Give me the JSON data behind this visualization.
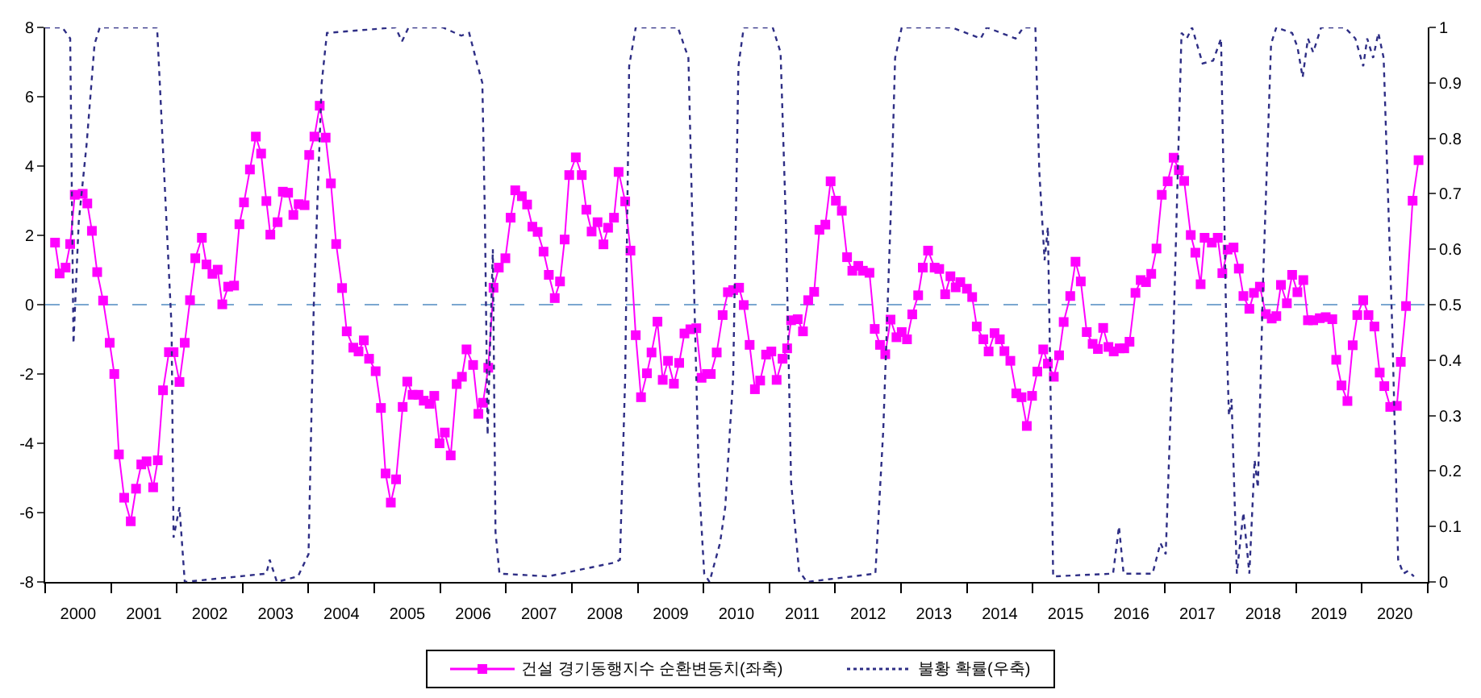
{
  "chart_data": {
    "type": "line",
    "xlim": [
      2000,
      2021
    ],
    "xticks": [
      {
        "value": 2000,
        "label": null
      },
      {
        "value": 2000.5,
        "label": "2000"
      },
      {
        "value": 2001,
        "label": null
      },
      {
        "value": 2001.5,
        "label": "2001"
      },
      {
        "value": 2002,
        "label": null
      },
      {
        "value": 2002.5,
        "label": "2002"
      },
      {
        "value": 2003,
        "label": null
      },
      {
        "value": 2003.5,
        "label": "2003"
      },
      {
        "value": 2004,
        "label": null
      },
      {
        "value": 2004.5,
        "label": "2004"
      },
      {
        "value": 2005,
        "label": null
      },
      {
        "value": 2005.5,
        "label": "2005"
      },
      {
        "value": 2006,
        "label": null
      },
      {
        "value": 2006.5,
        "label": "2006"
      },
      {
        "value": 2007,
        "label": null
      },
      {
        "value": 2007.5,
        "label": "2007"
      },
      {
        "value": 2008,
        "label": null
      },
      {
        "value": 2008.5,
        "label": "2008"
      },
      {
        "value": 2009,
        "label": null
      },
      {
        "value": 2009.5,
        "label": "2009"
      },
      {
        "value": 2010,
        "label": null
      },
      {
        "value": 2010.5,
        "label": "2010"
      },
      {
        "value": 2011,
        "label": null
      },
      {
        "value": 2011.5,
        "label": "2011"
      },
      {
        "value": 2012,
        "label": null
      },
      {
        "value": 2012.5,
        "label": "2012"
      },
      {
        "value": 2013,
        "label": null
      },
      {
        "value": 2013.5,
        "label": "2013"
      },
      {
        "value": 2014,
        "label": null
      },
      {
        "value": 2014.5,
        "label": "2014"
      },
      {
        "value": 2015,
        "label": null
      },
      {
        "value": 2015.5,
        "label": "2015"
      },
      {
        "value": 2016,
        "label": null
      },
      {
        "value": 2016.5,
        "label": "2016"
      },
      {
        "value": 2017,
        "label": null
      },
      {
        "value": 2017.5,
        "label": "2017"
      },
      {
        "value": 2018,
        "label": null
      },
      {
        "value": 2018.5,
        "label": "2018"
      },
      {
        "value": 2019,
        "label": null
      },
      {
        "value": 2019.5,
        "label": "2019"
      },
      {
        "value": 2020,
        "label": null
      },
      {
        "value": 2020.5,
        "label": "2020"
      },
      {
        "value": 2021,
        "label": null
      }
    ],
    "ylim": [
      -8,
      8
    ],
    "yticks": [
      -8,
      -6,
      -4,
      -2,
      0,
      2,
      4,
      6,
      8
    ],
    "y2lim": [
      0,
      1
    ],
    "y2ticks": [
      0,
      0.1,
      0.2,
      0.3,
      0.4,
      0.5,
      0.6,
      0.7,
      0.8,
      0.9,
      1
    ],
    "grid": false,
    "legend": "bottom",
    "ref_lines": [
      {
        "axis": "y",
        "value": 0,
        "label": null,
        "color": "#7ba7d0",
        "line_style": "dashed"
      }
    ],
    "series": [
      {
        "name": "건설 경기동행지수 순환변동치(좌축)",
        "color": "#ff00ff",
        "marker": "square",
        "line_style": "solid",
        "x": [
          2000.15,
          2000.22,
          2000.31,
          2000.38,
          2000.45,
          2000.57,
          2000.64,
          2000.71,
          2000.79,
          2000.88,
          2000.98,
          2001.05,
          2001.12,
          2001.2,
          2001.3,
          2001.38,
          2001.46,
          2001.54,
          2001.64,
          2001.71,
          2001.79,
          2001.88,
          2001.95,
          2002.04,
          2002.12,
          2002.2,
          2002.28,
          2002.38,
          2002.45,
          2002.54,
          2002.62,
          2002.69,
          2002.78,
          2002.87,
          2002.95,
          2003.02,
          2003.11,
          2003.2,
          2003.28,
          2003.36,
          2003.42,
          2003.53,
          2003.61,
          2003.69,
          2003.77,
          2003.85,
          2003.94,
          2004.01,
          2004.09,
          2004.17,
          2004.26,
          2004.34,
          2004.42,
          2004.51,
          2004.58,
          2004.68,
          2004.76,
          2004.84,
          2004.92,
          2005.02,
          2005.1,
          2005.17,
          2005.25,
          2005.33,
          2005.43,
          2005.5,
          2005.58,
          2005.67,
          2005.75,
          2005.84,
          2005.91,
          2005.99,
          2006.07,
          2006.16,
          2006.25,
          2006.33,
          2006.4,
          2006.5,
          2006.58,
          2006.65,
          2006.73,
          2006.81,
          2006.89,
          2006.99,
          2007.07,
          2007.14,
          2007.24,
          2007.32,
          2007.4,
          2007.48,
          2007.57,
          2007.65,
          2007.74,
          2007.82,
          2007.89,
          2007.96,
          2008.06,
          2008.15,
          2008.22,
          2008.3,
          2008.39,
          2008.48,
          2008.55,
          2008.64,
          2008.71,
          2008.81,
          2008.89,
          2008.97,
          2009.05,
          2009.14,
          2009.21,
          2009.3,
          2009.38,
          2009.46,
          2009.55,
          2009.63,
          2009.71,
          2009.8,
          2009.89,
          2009.97,
          2010.05,
          2010.11,
          2010.2,
          2010.29,
          2010.37,
          2010.45,
          2010.54,
          2010.61,
          2010.7,
          2010.78,
          2010.86,
          2010.95,
          2011.03,
          2011.11,
          2011.2,
          2011.27,
          2011.33,
          2011.43,
          2011.51,
          2011.59,
          2011.68,
          2011.76,
          2011.85,
          2011.93,
          2012.01,
          2012.1,
          2012.18,
          2012.26,
          2012.35,
          2012.42,
          2012.52,
          2012.6,
          2012.68,
          2012.76,
          2012.84,
          2012.93,
          2013.01,
          2013.09,
          2013.17,
          2013.26,
          2013.33,
          2013.41,
          2013.51,
          2013.58,
          2013.67,
          2013.75,
          2013.83,
          2013.9,
          2014.0,
          2014.08,
          2014.15,
          2014.25,
          2014.33,
          2014.42,
          2014.5,
          2014.57,
          2014.66,
          2014.75,
          2014.83,
          2014.91,
          2014.99,
          2015.07,
          2015.16,
          2015.23,
          2015.32,
          2015.4,
          2015.47,
          2015.57,
          2015.65,
          2015.73,
          2015.82,
          2015.91,
          2015.99,
          2016.07,
          2016.15,
          2016.23,
          2016.32,
          2016.39,
          2016.47,
          2016.56,
          2016.64,
          2016.72,
          2016.8,
          2016.88,
          2016.96,
          2017.05,
          2017.14,
          2017.22,
          2017.3,
          2017.4,
          2017.47,
          2017.55,
          2017.61,
          2017.72,
          2017.81,
          2017.88,
          2017.96,
          2018.05,
          2018.13,
          2018.2,
          2018.29,
          2018.36,
          2018.45,
          2018.54,
          2018.63,
          2018.7,
          2018.77,
          2018.86,
          2018.94,
          2019.02,
          2019.11,
          2019.18,
          2019.26,
          2019.36,
          2019.45,
          2019.55,
          2019.61,
          2019.69,
          2019.78,
          2019.86,
          2019.93,
          2020.02,
          2020.1,
          2020.19,
          2020.27,
          2020.34,
          2020.43,
          2020.53,
          2020.59,
          2020.67,
          2020.77,
          2020.86
        ],
        "values": [
          1.79,
          0.9,
          1.07,
          1.75,
          3.17,
          3.2,
          2.92,
          2.13,
          0.94,
          0.12,
          -1.1,
          -2.0,
          -4.32,
          -5.57,
          -6.25,
          -5.31,
          -4.61,
          -4.52,
          -5.27,
          -4.49,
          -2.47,
          -1.37,
          -1.37,
          -2.23,
          -1.1,
          0.13,
          1.34,
          1.93,
          1.16,
          0.89,
          1.01,
          0.01,
          0.52,
          0.55,
          2.32,
          2.95,
          3.9,
          4.85,
          4.36,
          2.99,
          2.02,
          2.38,
          3.26,
          3.23,
          2.59,
          2.9,
          2.87,
          4.32,
          4.85,
          5.74,
          4.82,
          3.5,
          1.75,
          0.48,
          -0.77,
          -1.24,
          -1.35,
          -1.03,
          -1.56,
          -1.92,
          -2.98,
          -4.87,
          -5.71,
          -5.04,
          -2.95,
          -2.22,
          -2.6,
          -2.6,
          -2.77,
          -2.86,
          -2.63,
          -4.0,
          -3.69,
          -4.35,
          -2.29,
          -2.08,
          -1.29,
          -1.74,
          -3.15,
          -2.83,
          -1.82,
          0.49,
          1.07,
          1.34,
          2.51,
          3.3,
          3.13,
          2.89,
          2.25,
          2.1,
          1.53,
          0.86,
          0.19,
          0.67,
          1.88,
          3.74,
          4.25,
          3.74,
          2.74,
          2.11,
          2.38,
          1.74,
          2.22,
          2.51,
          3.83,
          2.98,
          1.56,
          -0.88,
          -2.67,
          -1.98,
          -1.38,
          -0.49,
          -2.17,
          -1.62,
          -2.28,
          -1.68,
          -0.83,
          -0.71,
          -0.68,
          -2.11,
          -2.0,
          -2.0,
          -1.38,
          -0.3,
          0.36,
          0.42,
          0.49,
          -0.01,
          -1.16,
          -2.44,
          -2.19,
          -1.44,
          -1.35,
          -2.17,
          -1.56,
          -1.26,
          -0.45,
          -0.42,
          -0.77,
          0.13,
          0.37,
          2.16,
          2.31,
          3.56,
          3.0,
          2.71,
          1.37,
          0.98,
          1.12,
          0.98,
          0.92,
          -0.7,
          -1.16,
          -1.43,
          -0.43,
          -0.94,
          -0.79,
          -1.0,
          -0.28,
          0.27,
          1.07,
          1.56,
          1.07,
          1.03,
          0.3,
          0.82,
          0.5,
          0.65,
          0.46,
          0.22,
          -0.63,
          -1.0,
          -1.35,
          -0.82,
          -1.0,
          -1.34,
          -1.62,
          -2.56,
          -2.67,
          -3.5,
          -2.63,
          -1.93,
          -1.29,
          -1.7,
          -2.08,
          -1.46,
          -0.5,
          0.25,
          1.24,
          0.67,
          -0.79,
          -1.13,
          -1.28,
          -0.67,
          -1.22,
          -1.35,
          -1.26,
          -1.26,
          -1.07,
          0.34,
          0.71,
          0.65,
          0.89,
          1.62,
          3.17,
          3.56,
          4.24,
          3.88,
          3.57,
          2.01,
          1.5,
          0.59,
          1.93,
          1.79,
          1.93,
          0.91,
          1.59,
          1.65,
          1.04,
          0.25,
          -0.12,
          0.34,
          0.52,
          -0.27,
          -0.4,
          -0.33,
          0.57,
          0.04,
          0.86,
          0.36,
          0.71,
          -0.45,
          -0.45,
          -0.39,
          -0.36,
          -0.42,
          -1.59,
          -2.33,
          -2.78,
          -1.17,
          -0.3,
          0.13,
          -0.3,
          -0.63,
          -1.96,
          -2.35,
          -2.95,
          -2.92,
          -1.65,
          -0.04,
          3.0,
          4.17
        ]
      },
      {
        "name": "불황 확률(우축)",
        "color": "#2e2e85",
        "marker": "none",
        "line_style": "dotted",
        "axis": "y2",
        "x": [
          2000.0,
          2000.26,
          2000.38,
          2000.43,
          2000.51,
          2000.63,
          2000.75,
          2000.83,
          2001.7,
          2001.92,
          2001.95,
          2002.04,
          2002.12,
          2003.36,
          2003.41,
          2003.52,
          2003.84,
          2004.0,
          2004.08,
          2004.2,
          2004.28,
          2005.32,
          2005.42,
          2005.52,
          2006.04,
          2006.32,
          2006.44,
          2006.56,
          2006.64,
          2006.68,
          2006.72,
          2006.8,
          2006.84,
          2006.9,
          2007.64,
          2008.65,
          2008.73,
          2008.81,
          2008.87,
          2008.97,
          2009.61,
          2009.77,
          2009.83,
          2009.93,
          2010.01,
          2010.09,
          2010.25,
          2010.33,
          2010.45,
          2010.53,
          2010.61,
          2011.05,
          2011.17,
          2011.25,
          2011.33,
          2011.45,
          2011.57,
          2012.61,
          2012.73,
          2012.84,
          2012.91,
          2013.01,
          2013.77,
          2014.21,
          2014.3,
          2014.74,
          2014.86,
          2015.04,
          2015.1,
          2015.18,
          2015.23,
          2015.28,
          2015.31,
          2016.22,
          2016.31,
          2016.38,
          2016.82,
          2016.94,
          2017.02,
          2017.14,
          2017.26,
          2017.34,
          2017.42,
          2017.58,
          2017.74,
          2017.86,
          2017.94,
          2017.98,
          2018.02,
          2018.1,
          2018.2,
          2018.29,
          2018.37,
          2018.42,
          2018.5,
          2018.62,
          2018.7,
          2018.94,
          2019.02,
          2019.1,
          2019.18,
          2019.26,
          2019.38,
          2019.74,
          2019.9,
          2020.02,
          2020.08,
          2020.17,
          2020.25,
          2020.33,
          2020.46,
          2020.55,
          2020.63,
          2020.7,
          2020.79
        ],
        "values": [
          1,
          1,
          0.98,
          0.43,
          0.65,
          0.79,
          0.97,
          1,
          1,
          0.46,
          0.08,
          0.135,
          0,
          0.015,
          0.04,
          0,
          0.01,
          0.05,
          0.5,
          0.9,
          0.99,
          1,
          0.975,
          1,
          1,
          0.985,
          0.99,
          0.935,
          0.9,
          0.65,
          0.265,
          0.6,
          0.09,
          0.015,
          0.01,
          0.035,
          0.04,
          0.37,
          0.93,
          1,
          1,
          0.945,
          0.65,
          0.18,
          0.015,
          0,
          0.07,
          0.135,
          0.37,
          0.93,
          1,
          1,
          0.955,
          0.65,
          0.18,
          0.02,
          0,
          0.015,
          0.275,
          0.65,
          0.945,
          1,
          1,
          0.98,
          1,
          0.98,
          1,
          1,
          0.74,
          0.58,
          0.64,
          0.275,
          0.01,
          0.015,
          0.1,
          0.015,
          0.015,
          0.07,
          0.05,
          0.46,
          0.99,
          0.98,
          1,
          0.935,
          0.94,
          0.98,
          0.46,
          0.3,
          0.33,
          0.015,
          0.125,
          0.015,
          0.22,
          0.17,
          0.55,
          0.97,
          1,
          0.99,
          0.965,
          0.91,
          0.98,
          0.955,
          1,
          1,
          0.98,
          0.93,
          0.98,
          0.945,
          0.99,
          0.945,
          0.46,
          0.04,
          0.015,
          0.02,
          0.01
        ]
      }
    ]
  }
}
